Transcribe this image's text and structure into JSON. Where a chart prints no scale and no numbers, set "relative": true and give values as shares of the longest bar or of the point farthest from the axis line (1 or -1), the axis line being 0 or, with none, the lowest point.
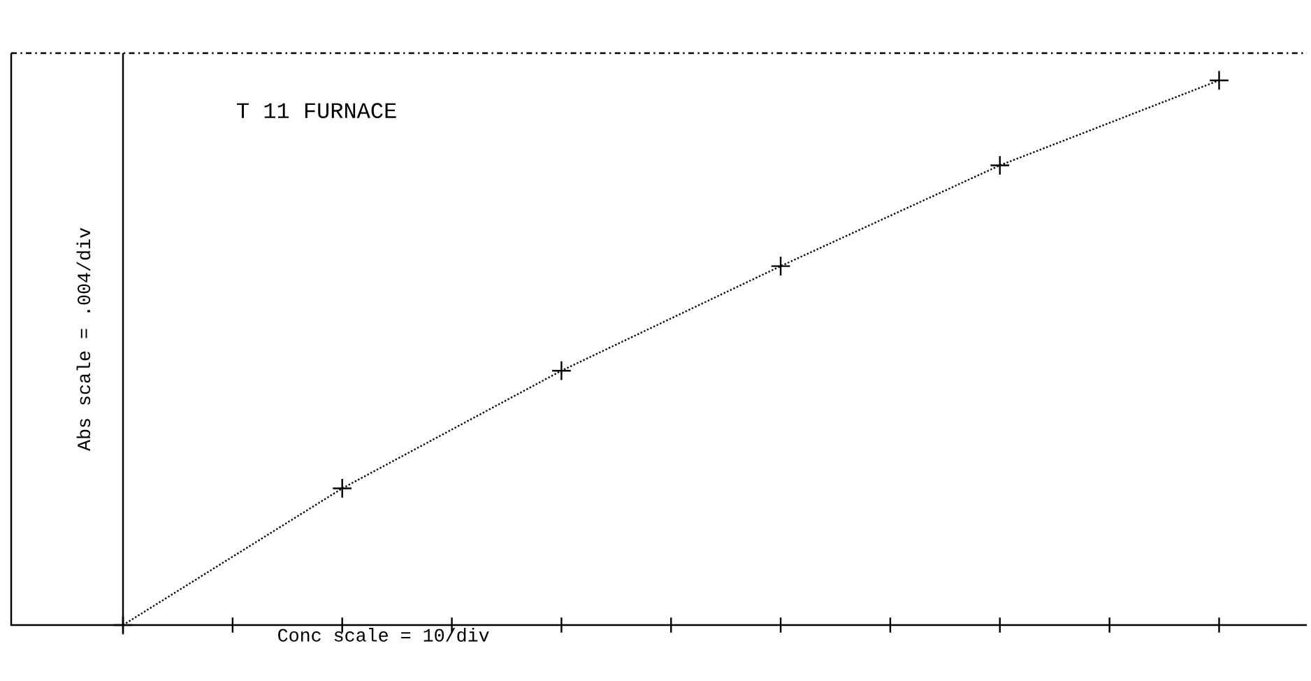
{
  "chart_data": {
    "type": "line",
    "title": "T 11 FURNACE",
    "xlabel": "Conc scale = 10/div",
    "ylabel": "Abs scale = .004/div",
    "relative": true,
    "categories": [
      null,
      null,
      null,
      null,
      null,
      null
    ],
    "series": [
      {
        "color": "#000000",
        "values": [
          0,
          0.251,
          0.467,
          0.659,
          0.844,
          1
        ]
      }
    ],
    "grid": false,
    "marker": "cross",
    "line_style": "dotted"
  }
}
